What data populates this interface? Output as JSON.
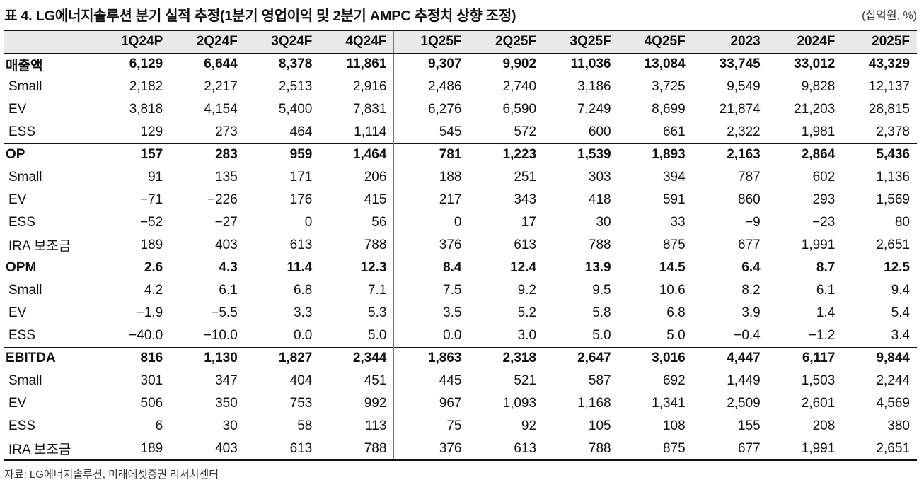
{
  "title": "표 4. LG에너지솔루션 분기 실적 추정(1분기 영업이익 및 2분기 AMPC 추정치 상향 조정)",
  "unit": "(십억원, %)",
  "columns": [
    "1Q24P",
    "2Q24F",
    "3Q24F",
    "4Q24F",
    "1Q25F",
    "2Q25F",
    "3Q25F",
    "4Q25F",
    "2023",
    "2024F",
    "2025F"
  ],
  "rows": [
    {
      "label": "매출액",
      "main": true,
      "values": [
        "6,129",
        "6,644",
        "8,378",
        "11,861",
        "9,307",
        "9,902",
        "11,036",
        "13,084",
        "33,745",
        "33,012",
        "43,329"
      ]
    },
    {
      "label": "Small",
      "main": false,
      "values": [
        "2,182",
        "2,217",
        "2,513",
        "2,916",
        "2,486",
        "2,740",
        "3,186",
        "3,725",
        "9,549",
        "9,828",
        "12,137"
      ]
    },
    {
      "label": "EV",
      "main": false,
      "values": [
        "3,818",
        "4,154",
        "5,400",
        "7,831",
        "6,276",
        "6,590",
        "7,249",
        "8,699",
        "21,874",
        "21,203",
        "28,815"
      ]
    },
    {
      "label": "ESS",
      "main": false,
      "values": [
        "129",
        "273",
        "464",
        "1,114",
        "545",
        "572",
        "600",
        "661",
        "2,322",
        "1,981",
        "2,378"
      ]
    },
    {
      "label": "OP",
      "main": true,
      "values": [
        "157",
        "283",
        "959",
        "1,464",
        "781",
        "1,223",
        "1,539",
        "1,893",
        "2,163",
        "2,864",
        "5,436"
      ]
    },
    {
      "label": "Small",
      "main": false,
      "values": [
        "91",
        "135",
        "171",
        "206",
        "188",
        "251",
        "303",
        "394",
        "787",
        "602",
        "1,136"
      ]
    },
    {
      "label": "EV",
      "main": false,
      "values": [
        "−71",
        "−226",
        "176",
        "415",
        "217",
        "343",
        "418",
        "591",
        "860",
        "293",
        "1,569"
      ]
    },
    {
      "label": "ESS",
      "main": false,
      "values": [
        "−52",
        "−27",
        "0",
        "56",
        "0",
        "17",
        "30",
        "33",
        "−9",
        "−23",
        "80"
      ]
    },
    {
      "label": "IRA 보조금",
      "main": false,
      "values": [
        "189",
        "403",
        "613",
        "788",
        "376",
        "613",
        "788",
        "875",
        "677",
        "1,991",
        "2,651"
      ]
    },
    {
      "label": "OPM",
      "main": true,
      "values": [
        "2.6",
        "4.3",
        "11.4",
        "12.3",
        "8.4",
        "12.4",
        "13.9",
        "14.5",
        "6.4",
        "8.7",
        "12.5"
      ]
    },
    {
      "label": "Small",
      "main": false,
      "values": [
        "4.2",
        "6.1",
        "6.8",
        "7.1",
        "7.5",
        "9.2",
        "9.5",
        "10.6",
        "8.2",
        "6.1",
        "9.4"
      ]
    },
    {
      "label": "EV",
      "main": false,
      "values": [
        "−1.9",
        "−5.5",
        "3.3",
        "5.3",
        "3.5",
        "5.2",
        "5.8",
        "6.8",
        "3.9",
        "1.4",
        "5.4"
      ]
    },
    {
      "label": "ESS",
      "main": false,
      "values": [
        "−40.0",
        "−10.0",
        "0.0",
        "5.0",
        "0.0",
        "3.0",
        "5.0",
        "5.0",
        "−0.4",
        "−1.2",
        "3.4"
      ]
    },
    {
      "label": "EBITDA",
      "main": true,
      "values": [
        "816",
        "1,130",
        "1,827",
        "2,344",
        "1,863",
        "2,318",
        "2,647",
        "3,016",
        "4,447",
        "6,117",
        "9,844"
      ]
    },
    {
      "label": "Small",
      "main": false,
      "values": [
        "301",
        "347",
        "404",
        "451",
        "445",
        "521",
        "587",
        "692",
        "1,449",
        "1,503",
        "2,244"
      ]
    },
    {
      "label": "EV",
      "main": false,
      "values": [
        "506",
        "350",
        "753",
        "992",
        "967",
        "1,093",
        "1,168",
        "1,341",
        "2,509",
        "2,601",
        "4,569"
      ]
    },
    {
      "label": "ESS",
      "main": false,
      "values": [
        "6",
        "30",
        "58",
        "113",
        "75",
        "92",
        "105",
        "108",
        "155",
        "208",
        "380"
      ]
    },
    {
      "label": "IRA 보조금",
      "main": false,
      "values": [
        "189",
        "403",
        "613",
        "788",
        "376",
        "613",
        "788",
        "875",
        "677",
        "1,991",
        "2,651"
      ]
    }
  ],
  "source": "자료: LG에너지솔루션, 미래에셋증권 리서치센터"
}
